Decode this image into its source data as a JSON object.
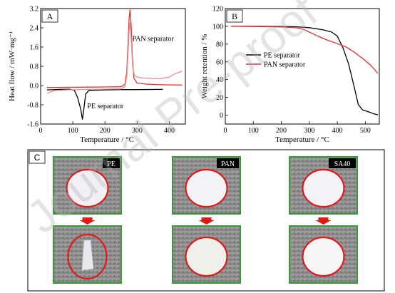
{
  "chart_data": [
    {
      "panel": "A",
      "type": "line",
      "xlabel": "Temperature / °C",
      "ylabel": "Heat flow / mW·mg⁻¹",
      "xlim": [
        0,
        450
      ],
      "ylim": [
        -1.6,
        3.2
      ],
      "xticks": [
        0,
        100,
        200,
        300,
        400
      ],
      "yticks": [
        -1.6,
        -0.8,
        0.0,
        0.8,
        1.6,
        2.4,
        3.2
      ],
      "ytick_labels": [
        "-1.6",
        "-0.8",
        "0.0",
        "0.8",
        "1.6",
        "2.4",
        "3.2"
      ],
      "annotations": [
        {
          "text": "PAN separator",
          "x": 285,
          "y": 1.85
        },
        {
          "text": "PE separator",
          "x": 145,
          "y": -0.95
        }
      ],
      "series": [
        {
          "color": "#000000",
          "points": [
            [
              20,
              -0.18
            ],
            [
              60,
              -0.16
            ],
            [
              90,
              -0.15
            ],
            [
              105,
              -0.2
            ],
            [
              115,
              -0.5
            ],
            [
              125,
              -1.0
            ],
            [
              130,
              -1.4
            ],
            [
              135,
              -0.9
            ],
            [
              140,
              -0.35
            ],
            [
              150,
              -0.2
            ],
            [
              200,
              -0.18
            ],
            [
              250,
              -0.17
            ],
            [
              300,
              -0.17
            ],
            [
              380,
              -0.16
            ]
          ]
        },
        {
          "color": "#e03030",
          "points": [
            [
              20,
              -0.08
            ],
            [
              100,
              -0.07
            ],
            [
              200,
              -0.06
            ],
            [
              250,
              -0.05
            ],
            [
              262,
              0.05
            ],
            [
              268,
              0.6
            ],
            [
              272,
              1.8
            ],
            [
              275,
              2.8
            ],
            [
              278,
              3.15
            ],
            [
              281,
              2.6
            ],
            [
              285,
              1.2
            ],
            [
              290,
              0.3
            ],
            [
              300,
              0.1
            ],
            [
              330,
              0.06
            ],
            [
              360,
              0.04
            ],
            [
              390,
              0.03
            ],
            [
              440,
              0.02
            ]
          ]
        },
        {
          "color": "#e89090",
          "points": [
            [
              20,
              -0.32
            ],
            [
              40,
              -0.22
            ],
            [
              80,
              -0.18
            ],
            [
              150,
              -0.16
            ],
            [
              250,
              -0.14
            ],
            [
              262,
              -0.05
            ],
            [
              268,
              0.4
            ],
            [
              272,
              1.4
            ],
            [
              275,
              2.3
            ],
            [
              278,
              2.6
            ],
            [
              281,
              2.0
            ],
            [
              286,
              0.8
            ],
            [
              292,
              0.4
            ],
            [
              310,
              0.32
            ],
            [
              340,
              0.3
            ],
            [
              370,
              0.28
            ],
            [
              400,
              0.35
            ],
            [
              420,
              0.5
            ],
            [
              440,
              0.6
            ]
          ]
        }
      ]
    },
    {
      "panel": "B",
      "type": "line",
      "xlabel": "Temperature / °C",
      "ylabel": "Weight retention / %",
      "xlim": [
        0,
        550
      ],
      "ylim": [
        -10,
        120
      ],
      "xticks": [
        0,
        100,
        200,
        300,
        400,
        500
      ],
      "yticks": [
        0,
        20,
        40,
        60,
        80,
        100,
        120
      ],
      "legend": {
        "placement": "middle-left",
        "entries": [
          {
            "name": "PE separator",
            "color": "#000000"
          },
          {
            "name": "PAN separator",
            "color": "#e03030"
          }
        ]
      },
      "series": [
        {
          "name": "PE separator",
          "color": "#000000",
          "points": [
            [
              20,
              100
            ],
            [
              100,
              100
            ],
            [
              200,
              99.8
            ],
            [
              250,
              99.5
            ],
            [
              300,
              98.5
            ],
            [
              350,
              96
            ],
            [
              380,
              93.5
            ],
            [
              400,
              89
            ],
            [
              420,
              76
            ],
            [
              440,
              58
            ],
            [
              460,
              32
            ],
            [
              475,
              12
            ],
            [
              490,
              6
            ],
            [
              510,
              4
            ],
            [
              530,
              1.5
            ],
            [
              545,
              0.5
            ]
          ]
        },
        {
          "name": "PAN separator",
          "color": "#e03030",
          "points": [
            [
              20,
              100
            ],
            [
              100,
              99.8
            ],
            [
              200,
              99.3
            ],
            [
              250,
              98.5
            ],
            [
              280,
              96.5
            ],
            [
              300,
              93.5
            ],
            [
              330,
              89
            ],
            [
              360,
              85
            ],
            [
              400,
              80.5
            ],
            [
              430,
              77
            ],
            [
              460,
              71
            ],
            [
              490,
              64
            ],
            [
              520,
              56
            ],
            [
              545,
              47
            ]
          ]
        }
      ]
    }
  ],
  "panel_c": {
    "letter": "C",
    "samples": [
      {
        "label": "PE",
        "disk_color": "#f1f1f5",
        "after_disk_color": "#7a8a7a"
      },
      {
        "label": "PAN",
        "disk_color": "#f4f4f8",
        "after_disk_color": "#f0f0ea"
      },
      {
        "label": "SA40",
        "disk_color": "#f4f2f6",
        "after_disk_color": "#f6f4f6"
      }
    ]
  },
  "watermark": "Journal Pre-proof",
  "colors": {
    "frame_green": "#3a9a3a",
    "ring_red": "#e01818",
    "arrow_red": "#e01818"
  }
}
